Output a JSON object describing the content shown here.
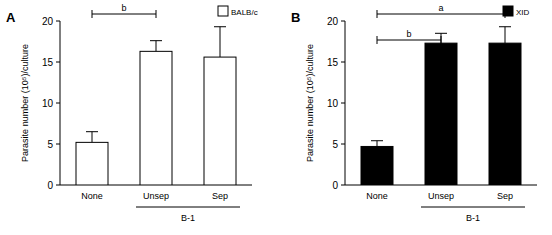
{
  "chart_data": [
    {
      "type": "bar",
      "title": "A",
      "y_label": "Parasite number (10⁵)/culture",
      "categories": [
        "None",
        "Unsep",
        "Sep"
      ],
      "series": [
        {
          "name": "BALB/c",
          "color": "#ffffff",
          "values": [
            5.2,
            16.3,
            15.6
          ],
          "errors": [
            1.3,
            1.3,
            3.7
          ]
        }
      ],
      "ylim": [
        0,
        20
      ],
      "yticks": [
        0,
        5,
        10,
        15,
        20
      ],
      "legend": "upper right",
      "annotations": [
        {
          "text": "b",
          "between": [
            "None",
            "Unsep"
          ]
        }
      ],
      "group_labels": [
        {
          "text": "B-1",
          "categories": [
            "Unsep",
            "Sep"
          ]
        }
      ]
    },
    {
      "type": "bar",
      "title": "B",
      "y_label": "Parasite number (10⁵)/culture",
      "categories": [
        "None",
        "Unsep",
        "Sep"
      ],
      "series": [
        {
          "name": "XID",
          "color": "#000000",
          "values": [
            4.7,
            17.3,
            17.3
          ],
          "errors": [
            0.7,
            1.2,
            2.0
          ]
        }
      ],
      "ylim": [
        0,
        20
      ],
      "yticks": [
        0,
        5,
        10,
        15,
        20
      ],
      "legend": "upper right",
      "annotations": [
        {
          "text": "a",
          "between": [
            "None",
            "Sep"
          ]
        },
        {
          "text": "b",
          "between": [
            "None",
            "Unsep"
          ]
        }
      ],
      "group_labels": [
        {
          "text": "B-1",
          "categories": [
            "Unsep",
            "Sep"
          ]
        }
      ]
    }
  ]
}
